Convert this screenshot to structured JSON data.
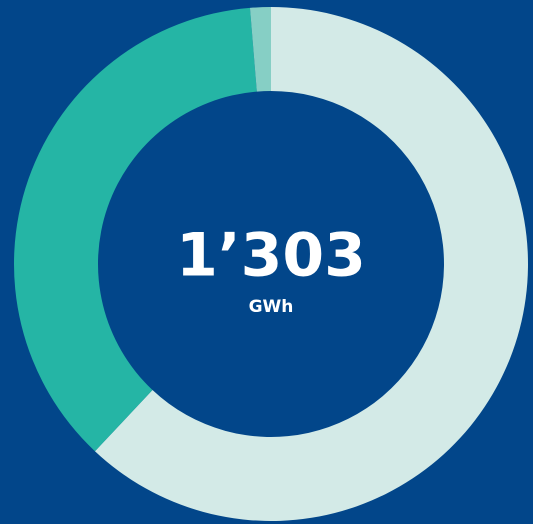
{
  "chart_data": {
    "type": "donut",
    "values": [
      808,
      478,
      17
    ],
    "colors": [
      "#d3eae7",
      "#25b5a5",
      "#86cfc5"
    ],
    "center_label": "1’303",
    "unit": "GWh"
  }
}
